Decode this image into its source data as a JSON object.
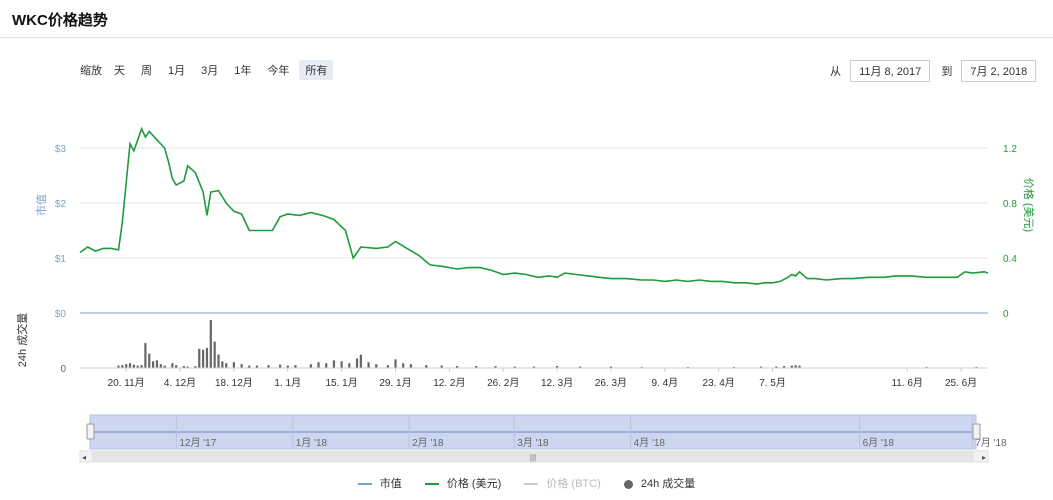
{
  "header": {
    "title": "WKC价格趋势"
  },
  "toolbar": {
    "zoom_label": "缩放",
    "zoom_buttons": [
      "天",
      "周",
      "1月",
      "3月",
      "1年",
      "今年",
      "所有"
    ],
    "active_zoom": "所有",
    "from_label": "从",
    "from_date": "11月 8, 2017",
    "to_label": "到",
    "to_date": "7月 2, 2018"
  },
  "legend": {
    "items": [
      {
        "label": "市值",
        "color": "#7aa3cc"
      },
      {
        "label": "价格 (美元)",
        "color": "#1e9b3c"
      },
      {
        "label": "价格 (BTC)",
        "color": "#cccccc"
      },
      {
        "label": "24h 成交量",
        "color": "#666666"
      }
    ]
  },
  "colors": {
    "market_cap": "#7aa3cc",
    "price_usd": "#1e9b3c",
    "volume": "#666666",
    "navigator_fill": "#cdd6ef"
  },
  "chart_data": {
    "type": "line",
    "x_start": "2017-11-08",
    "x_end": "2018-07-02",
    "y_left_label": "市值",
    "y_left_ticks": [
      "$0",
      "$1",
      "$2",
      "$3"
    ],
    "y_right_label": "价格 (美元)",
    "y_right_ticks": [
      "0",
      "0.4",
      "0.8",
      "1.2"
    ],
    "y_right_range": [
      0,
      1.2
    ],
    "volume_label": "24h 成交量",
    "volume_ticks": [
      "0"
    ],
    "x_tick_labels": [
      {
        "date": "2017-11-20",
        "label": "20. 11月"
      },
      {
        "date": "2017-12-04",
        "label": "4. 12月"
      },
      {
        "date": "2017-12-18",
        "label": "18. 12月"
      },
      {
        "date": "2018-01-01",
        "label": "1. 1月"
      },
      {
        "date": "2018-01-15",
        "label": "15. 1月"
      },
      {
        "date": "2018-01-29",
        "label": "29. 1月"
      },
      {
        "date": "2018-02-12",
        "label": "12. 2月"
      },
      {
        "date": "2018-02-26",
        "label": "26. 2月"
      },
      {
        "date": "2018-03-12",
        "label": "12. 3月"
      },
      {
        "date": "2018-03-26",
        "label": "26. 3月"
      },
      {
        "date": "2018-04-09",
        "label": "9. 4月"
      },
      {
        "date": "2018-04-23",
        "label": "23. 4月"
      },
      {
        "date": "2018-05-07",
        "label": "7. 5月"
      },
      {
        "date": "2018-06-11",
        "label": "11. 6月"
      },
      {
        "date": "2018-06-25",
        "label": "25. 6月"
      }
    ],
    "navigator_labels": [
      {
        "date": "2017-12-01",
        "label": "12月 '17"
      },
      {
        "date": "2018-01-01",
        "label": "1月 '18"
      },
      {
        "date": "2018-02-01",
        "label": "2月 '18"
      },
      {
        "date": "2018-03-01",
        "label": "3月 '18"
      },
      {
        "date": "2018-04-01",
        "label": "4月 '18"
      },
      {
        "date": "2018-06-01",
        "label": "6月 '18"
      },
      {
        "date": "2018-07-01",
        "label": "7月 '18"
      }
    ],
    "series": [
      {
        "name": "价格 (美元)",
        "axis": "right",
        "points": [
          [
            "2017-11-08",
            0.44
          ],
          [
            "2017-11-10",
            0.48
          ],
          [
            "2017-11-12",
            0.45
          ],
          [
            "2017-11-14",
            0.47
          ],
          [
            "2017-11-16",
            0.47
          ],
          [
            "2017-11-18",
            0.46
          ],
          [
            "2017-11-19",
            0.66
          ],
          [
            "2017-11-21",
            1.23
          ],
          [
            "2017-11-22",
            1.18
          ],
          [
            "2017-11-24",
            1.34
          ],
          [
            "2017-11-25",
            1.28
          ],
          [
            "2017-11-26",
            1.32
          ],
          [
            "2017-11-28",
            1.26
          ],
          [
            "2017-11-30",
            1.2
          ],
          [
            "2017-12-01",
            1.1
          ],
          [
            "2017-12-02",
            0.98
          ],
          [
            "2017-12-03",
            0.93
          ],
          [
            "2017-12-05",
            0.96
          ],
          [
            "2017-12-06",
            1.07
          ],
          [
            "2017-12-08",
            1.02
          ],
          [
            "2017-12-10",
            0.88
          ],
          [
            "2017-12-11",
            0.71
          ],
          [
            "2017-12-12",
            0.88
          ],
          [
            "2017-12-14",
            0.89
          ],
          [
            "2017-12-16",
            0.8
          ],
          [
            "2017-12-18",
            0.74
          ],
          [
            "2017-12-20",
            0.72
          ],
          [
            "2017-12-22",
            0.6
          ],
          [
            "2017-12-25",
            0.6
          ],
          [
            "2017-12-28",
            0.6
          ],
          [
            "2017-12-30",
            0.7
          ],
          [
            "2018-01-01",
            0.72
          ],
          [
            "2018-01-04",
            0.71
          ],
          [
            "2018-01-07",
            0.73
          ],
          [
            "2018-01-10",
            0.71
          ],
          [
            "2018-01-13",
            0.68
          ],
          [
            "2018-01-16",
            0.6
          ],
          [
            "2018-01-18",
            0.4
          ],
          [
            "2018-01-20",
            0.48
          ],
          [
            "2018-01-24",
            0.47
          ],
          [
            "2018-01-27",
            0.48
          ],
          [
            "2018-01-29",
            0.52
          ],
          [
            "2018-02-01",
            0.47
          ],
          [
            "2018-02-04",
            0.42
          ],
          [
            "2018-02-07",
            0.35
          ],
          [
            "2018-02-10",
            0.34
          ],
          [
            "2018-02-14",
            0.32
          ],
          [
            "2018-02-17",
            0.33
          ],
          [
            "2018-02-20",
            0.33
          ],
          [
            "2018-02-23",
            0.31
          ],
          [
            "2018-02-26",
            0.28
          ],
          [
            "2018-03-01",
            0.29
          ],
          [
            "2018-03-04",
            0.28
          ],
          [
            "2018-03-07",
            0.26
          ],
          [
            "2018-03-10",
            0.27
          ],
          [
            "2018-03-12",
            0.26
          ],
          [
            "2018-03-14",
            0.29
          ],
          [
            "2018-03-17",
            0.28
          ],
          [
            "2018-03-20",
            0.27
          ],
          [
            "2018-03-23",
            0.26
          ],
          [
            "2018-03-26",
            0.25
          ],
          [
            "2018-03-30",
            0.25
          ],
          [
            "2018-04-03",
            0.24
          ],
          [
            "2018-04-06",
            0.24
          ],
          [
            "2018-04-09",
            0.23
          ],
          [
            "2018-04-12",
            0.24
          ],
          [
            "2018-04-15",
            0.23
          ],
          [
            "2018-04-18",
            0.24
          ],
          [
            "2018-04-21",
            0.23
          ],
          [
            "2018-04-24",
            0.23
          ],
          [
            "2018-04-27",
            0.22
          ],
          [
            "2018-04-30",
            0.22
          ],
          [
            "2018-05-03",
            0.21
          ],
          [
            "2018-05-05",
            0.22
          ],
          [
            "2018-05-07",
            0.22
          ],
          [
            "2018-05-09",
            0.23
          ],
          [
            "2018-05-11",
            0.26
          ],
          [
            "2018-05-12",
            0.28
          ],
          [
            "2018-05-13",
            0.27
          ],
          [
            "2018-05-14",
            0.3
          ],
          [
            "2018-05-16",
            0.25
          ],
          [
            "2018-05-18",
            0.25
          ],
          [
            "2018-05-21",
            0.24
          ],
          [
            "2018-05-25",
            0.25
          ],
          [
            "2018-05-28",
            0.25
          ],
          [
            "2018-06-01",
            0.26
          ],
          [
            "2018-06-05",
            0.26
          ],
          [
            "2018-06-08",
            0.27
          ],
          [
            "2018-06-12",
            0.27
          ],
          [
            "2018-06-16",
            0.26
          ],
          [
            "2018-06-20",
            0.26
          ],
          [
            "2018-06-24",
            0.26
          ],
          [
            "2018-06-25",
            0.28
          ],
          [
            "2018-06-26",
            0.3
          ],
          [
            "2018-06-28",
            0.29
          ],
          [
            "2018-07-01",
            0.3
          ],
          [
            "2018-07-02",
            0.29
          ]
        ]
      },
      {
        "name": "24h 成交量",
        "axis": "volume",
        "points": [
          [
            "2017-11-18",
            0.05
          ],
          [
            "2017-11-19",
            0.06
          ],
          [
            "2017-11-20",
            0.08
          ],
          [
            "2017-11-21",
            0.1
          ],
          [
            "2017-11-22",
            0.07
          ],
          [
            "2017-11-23",
            0.05
          ],
          [
            "2017-11-24",
            0.06
          ],
          [
            "2017-11-25",
            0.52
          ],
          [
            "2017-11-26",
            0.3
          ],
          [
            "2017-11-27",
            0.14
          ],
          [
            "2017-11-28",
            0.16
          ],
          [
            "2017-11-29",
            0.08
          ],
          [
            "2017-11-30",
            0.05
          ],
          [
            "2017-12-02",
            0.1
          ],
          [
            "2017-12-03",
            0.06
          ],
          [
            "2017-12-05",
            0.04
          ],
          [
            "2017-12-06",
            0.03
          ],
          [
            "2017-12-08",
            0.04
          ],
          [
            "2017-12-09",
            0.4
          ],
          [
            "2017-12-10",
            0.38
          ],
          [
            "2017-12-11",
            0.42
          ],
          [
            "2017-12-12",
            1.0
          ],
          [
            "2017-12-13",
            0.55
          ],
          [
            "2017-12-14",
            0.28
          ],
          [
            "2017-12-15",
            0.14
          ],
          [
            "2017-12-16",
            0.1
          ],
          [
            "2017-12-18",
            0.12
          ],
          [
            "2017-12-20",
            0.08
          ],
          [
            "2017-12-22",
            0.05
          ],
          [
            "2017-12-24",
            0.05
          ],
          [
            "2017-12-27",
            0.06
          ],
          [
            "2017-12-30",
            0.07
          ],
          [
            "2018-01-01",
            0.05
          ],
          [
            "2018-01-03",
            0.06
          ],
          [
            "2018-01-07",
            0.08
          ],
          [
            "2018-01-09",
            0.12
          ],
          [
            "2018-01-11",
            0.1
          ],
          [
            "2018-01-13",
            0.16
          ],
          [
            "2018-01-15",
            0.14
          ],
          [
            "2018-01-17",
            0.1
          ],
          [
            "2018-01-19",
            0.2
          ],
          [
            "2018-01-20",
            0.28
          ],
          [
            "2018-01-22",
            0.12
          ],
          [
            "2018-01-24",
            0.08
          ],
          [
            "2018-01-27",
            0.06
          ],
          [
            "2018-01-29",
            0.18
          ],
          [
            "2018-01-31",
            0.1
          ],
          [
            "2018-02-02",
            0.08
          ],
          [
            "2018-02-06",
            0.06
          ],
          [
            "2018-02-10",
            0.05
          ],
          [
            "2018-02-14",
            0.04
          ],
          [
            "2018-02-19",
            0.04
          ],
          [
            "2018-02-24",
            0.04
          ],
          [
            "2018-03-01",
            0.03
          ],
          [
            "2018-03-06",
            0.03
          ],
          [
            "2018-03-12",
            0.04
          ],
          [
            "2018-03-18",
            0.03
          ],
          [
            "2018-03-26",
            0.03
          ],
          [
            "2018-04-03",
            0.02
          ],
          [
            "2018-04-15",
            0.02
          ],
          [
            "2018-04-27",
            0.02
          ],
          [
            "2018-05-04",
            0.03
          ],
          [
            "2018-05-08",
            0.03
          ],
          [
            "2018-05-10",
            0.04
          ],
          [
            "2018-05-12",
            0.05
          ],
          [
            "2018-05-13",
            0.06
          ],
          [
            "2018-05-14",
            0.05
          ],
          [
            "2018-06-16",
            0.02
          ],
          [
            "2018-06-29",
            0.02
          ]
        ]
      }
    ],
    "grid": true,
    "legend_position": "bottom"
  }
}
